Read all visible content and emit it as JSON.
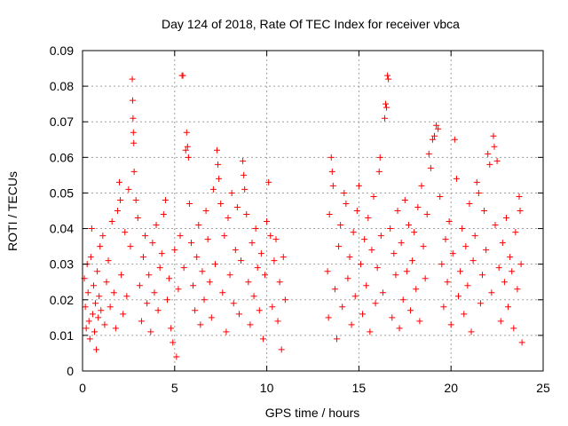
{
  "chart_data": {
    "type": "scatter",
    "title": "Day 124 of 2018, Rate Of TEC Index for receiver vbca",
    "xlabel": "GPS time / hours",
    "ylabel": "ROTI / TECUs",
    "xlim": [
      0,
      25
    ],
    "ylim": [
      0,
      0.09
    ],
    "xticks": [
      0,
      5,
      10,
      15,
      20,
      25
    ],
    "xtick_labels": [
      "0",
      "5",
      "10",
      "15",
      "20",
      "25"
    ],
    "yticks": [
      0,
      0.01,
      0.02,
      0.03,
      0.04,
      0.05,
      0.06,
      0.07,
      0.08,
      0.09
    ],
    "ytick_labels": [
      "0",
      "0.01",
      "0.02",
      "0.03",
      "0.04",
      "0.05",
      "0.06",
      "0.07",
      "0.08",
      "0.09"
    ],
    "grid": true,
    "marker": "+",
    "marker_color": "#ff0000",
    "data_gap_hours": [
      11.1,
      13.2
    ],
    "series": [
      {
        "points": [
          [
            0.1,
            0.026
          ],
          [
            0.15,
            0.018
          ],
          [
            0.2,
            0.012
          ],
          [
            0.25,
            0.03
          ],
          [
            0.3,
            0.022
          ],
          [
            0.35,
            0.014
          ],
          [
            0.4,
            0.009
          ],
          [
            0.45,
            0.032
          ],
          [
            0.5,
            0.04
          ],
          [
            0.55,
            0.016
          ],
          [
            0.6,
            0.024
          ],
          [
            0.65,
            0.011
          ],
          [
            0.7,
            0.019
          ],
          [
            0.75,
            0.006
          ],
          [
            0.8,
            0.028
          ],
          [
            0.85,
            0.015
          ],
          [
            0.9,
            0.021
          ],
          [
            0.95,
            0.035
          ],
          [
            1.0,
            0.017
          ],
          [
            1.1,
            0.038
          ],
          [
            1.2,
            0.013
          ],
          [
            1.3,
            0.025
          ],
          [
            1.4,
            0.031
          ],
          [
            1.5,
            0.018
          ],
          [
            1.6,
            0.042
          ],
          [
            1.7,
            0.022
          ],
          [
            1.8,
            0.012
          ],
          [
            1.9,
            0.045
          ],
          [
            2.0,
            0.053
          ],
          [
            2.05,
            0.048
          ],
          [
            2.1,
            0.027
          ],
          [
            2.2,
            0.016
          ],
          [
            2.3,
            0.039
          ],
          [
            2.4,
            0.021
          ],
          [
            2.5,
            0.051
          ],
          [
            2.6,
            0.035
          ],
          [
            2.7,
            0.082
          ],
          [
            2.72,
            0.076
          ],
          [
            2.74,
            0.071
          ],
          [
            2.76,
            0.067
          ],
          [
            2.78,
            0.064
          ],
          [
            2.8,
            0.056
          ],
          [
            2.9,
            0.048
          ],
          [
            3.0,
            0.043
          ],
          [
            3.1,
            0.024
          ],
          [
            3.2,
            0.014
          ],
          [
            3.3,
            0.032
          ],
          [
            3.4,
            0.038
          ],
          [
            3.5,
            0.019
          ],
          [
            3.6,
            0.027
          ],
          [
            3.7,
            0.011
          ],
          [
            3.8,
            0.036
          ],
          [
            3.9,
            0.022
          ],
          [
            4.0,
            0.041
          ],
          [
            4.1,
            0.017
          ],
          [
            4.2,
            0.029
          ],
          [
            4.3,
            0.033
          ],
          [
            4.4,
            0.044
          ],
          [
            4.5,
            0.048
          ],
          [
            4.6,
            0.02
          ],
          [
            4.7,
            0.026
          ],
          [
            4.8,
            0.012
          ],
          [
            4.9,
            0.008
          ],
          [
            5.0,
            0.034
          ],
          [
            5.1,
            0.004
          ],
          [
            5.2,
            0.023
          ],
          [
            5.3,
            0.038
          ],
          [
            5.4,
            0.083
          ],
          [
            5.45,
            0.083
          ],
          [
            5.5,
            0.029
          ],
          [
            5.6,
            0.062
          ],
          [
            5.65,
            0.067
          ],
          [
            5.7,
            0.063
          ],
          [
            5.75,
            0.06
          ],
          [
            5.8,
            0.047
          ],
          [
            5.9,
            0.036
          ],
          [
            6.0,
            0.024
          ],
          [
            6.1,
            0.017
          ],
          [
            6.2,
            0.032
          ],
          [
            6.3,
            0.041
          ],
          [
            6.4,
            0.013
          ],
          [
            6.5,
            0.028
          ],
          [
            6.6,
            0.02
          ],
          [
            6.7,
            0.045
          ],
          [
            6.8,
            0.037
          ],
          [
            6.9,
            0.025
          ],
          [
            7.0,
            0.015
          ],
          [
            7.1,
            0.051
          ],
          [
            7.2,
            0.03
          ],
          [
            7.3,
            0.062
          ],
          [
            7.35,
            0.058
          ],
          [
            7.4,
            0.054
          ],
          [
            7.5,
            0.047
          ],
          [
            7.6,
            0.022
          ],
          [
            7.7,
            0.038
          ],
          [
            7.8,
            0.011
          ],
          [
            7.9,
            0.043
          ],
          [
            8.0,
            0.027
          ],
          [
            8.1,
            0.05
          ],
          [
            8.2,
            0.019
          ],
          [
            8.3,
            0.034
          ],
          [
            8.4,
            0.046
          ],
          [
            8.5,
            0.016
          ],
          [
            8.6,
            0.031
          ],
          [
            8.7,
            0.059
          ],
          [
            8.75,
            0.055
          ],
          [
            8.8,
            0.051
          ],
          [
            8.9,
            0.044
          ],
          [
            9.0,
            0.025
          ],
          [
            9.1,
            0.013
          ],
          [
            9.2,
            0.036
          ],
          [
            9.3,
            0.021
          ],
          [
            9.4,
            0.04
          ],
          [
            9.5,
            0.029
          ],
          [
            9.6,
            0.017
          ],
          [
            9.7,
            0.033
          ],
          [
            9.8,
            0.009
          ],
          [
            9.9,
            0.027
          ],
          [
            10.0,
            0.042
          ],
          [
            10.1,
            0.053
          ],
          [
            10.2,
            0.038
          ],
          [
            10.3,
            0.018
          ],
          [
            10.4,
            0.031
          ],
          [
            10.5,
            0.037
          ],
          [
            10.6,
            0.014
          ],
          [
            10.7,
            0.025
          ],
          [
            10.8,
            0.006
          ],
          [
            10.9,
            0.032
          ],
          [
            11.0,
            0.02
          ],
          [
            13.3,
            0.028
          ],
          [
            13.35,
            0.015
          ],
          [
            13.4,
            0.044
          ],
          [
            13.5,
            0.06
          ],
          [
            13.55,
            0.056
          ],
          [
            13.6,
            0.052
          ],
          [
            13.7,
            0.023
          ],
          [
            13.8,
            0.009
          ],
          [
            13.9,
            0.035
          ],
          [
            14.0,
            0.041
          ],
          [
            14.1,
            0.018
          ],
          [
            14.2,
            0.05
          ],
          [
            14.3,
            0.047
          ],
          [
            14.4,
            0.026
          ],
          [
            14.5,
            0.032
          ],
          [
            14.6,
            0.013
          ],
          [
            14.7,
            0.039
          ],
          [
            14.8,
            0.021
          ],
          [
            14.9,
            0.045
          ],
          [
            15.0,
            0.052
          ],
          [
            15.1,
            0.03
          ],
          [
            15.2,
            0.016
          ],
          [
            15.3,
            0.037
          ],
          [
            15.4,
            0.024
          ],
          [
            15.5,
            0.043
          ],
          [
            15.6,
            0.011
          ],
          [
            15.7,
            0.034
          ],
          [
            15.8,
            0.049
          ],
          [
            15.9,
            0.019
          ],
          [
            16.0,
            0.029
          ],
          [
            16.1,
            0.056
          ],
          [
            16.15,
            0.06
          ],
          [
            16.2,
            0.038
          ],
          [
            16.3,
            0.022
          ],
          [
            16.4,
            0.071
          ],
          [
            16.45,
            0.075
          ],
          [
            16.5,
            0.074
          ],
          [
            16.55,
            0.083
          ],
          [
            16.6,
            0.082
          ],
          [
            16.7,
            0.04
          ],
          [
            16.8,
            0.015
          ],
          [
            16.9,
            0.033
          ],
          [
            17.0,
            0.027
          ],
          [
            17.1,
            0.045
          ],
          [
            17.2,
            0.012
          ],
          [
            17.3,
            0.036
          ],
          [
            17.4,
            0.02
          ],
          [
            17.5,
            0.048
          ],
          [
            17.6,
            0.028
          ],
          [
            17.7,
            0.041
          ],
          [
            17.8,
            0.017
          ],
          [
            17.9,
            0.031
          ],
          [
            18.0,
            0.039
          ],
          [
            18.1,
            0.023
          ],
          [
            18.2,
            0.046
          ],
          [
            18.3,
            0.014
          ],
          [
            18.4,
            0.052
          ],
          [
            18.5,
            0.035
          ],
          [
            18.6,
            0.026
          ],
          [
            18.7,
            0.044
          ],
          [
            18.8,
            0.061
          ],
          [
            18.9,
            0.057
          ],
          [
            19.0,
            0.065
          ],
          [
            19.1,
            0.066
          ],
          [
            19.2,
            0.069
          ],
          [
            19.3,
            0.068
          ],
          [
            19.4,
            0.049
          ],
          [
            19.5,
            0.03
          ],
          [
            19.6,
            0.018
          ],
          [
            19.7,
            0.037
          ],
          [
            19.8,
            0.025
          ],
          [
            19.9,
            0.042
          ],
          [
            20.0,
            0.013
          ],
          [
            20.1,
            0.033
          ],
          [
            20.2,
            0.065
          ],
          [
            20.3,
            0.054
          ],
          [
            20.4,
            0.021
          ],
          [
            20.5,
            0.028
          ],
          [
            20.6,
            0.04
          ],
          [
            20.7,
            0.016
          ],
          [
            20.8,
            0.035
          ],
          [
            20.9,
            0.024
          ],
          [
            21.0,
            0.047
          ],
          [
            21.1,
            0.011
          ],
          [
            21.2,
            0.031
          ],
          [
            21.3,
            0.038
          ],
          [
            21.4,
            0.053
          ],
          [
            21.5,
            0.05
          ],
          [
            21.6,
            0.019
          ],
          [
            21.7,
            0.027
          ],
          [
            21.8,
            0.045
          ],
          [
            21.9,
            0.034
          ],
          [
            22.0,
            0.061
          ],
          [
            22.1,
            0.058
          ],
          [
            22.2,
            0.022
          ],
          [
            22.3,
            0.066
          ],
          [
            22.35,
            0.063
          ],
          [
            22.4,
            0.041
          ],
          [
            22.5,
            0.059
          ],
          [
            22.6,
            0.029
          ],
          [
            22.7,
            0.014
          ],
          [
            22.8,
            0.036
          ],
          [
            22.9,
            0.025
          ],
          [
            23.0,
            0.043
          ],
          [
            23.1,
            0.018
          ],
          [
            23.2,
            0.032
          ],
          [
            23.3,
            0.028
          ],
          [
            23.4,
            0.012
          ],
          [
            23.5,
            0.039
          ],
          [
            23.6,
            0.023
          ],
          [
            23.7,
            0.049
          ],
          [
            23.75,
            0.045
          ],
          [
            23.8,
            0.03
          ],
          [
            23.85,
            0.008
          ]
        ]
      }
    ]
  }
}
